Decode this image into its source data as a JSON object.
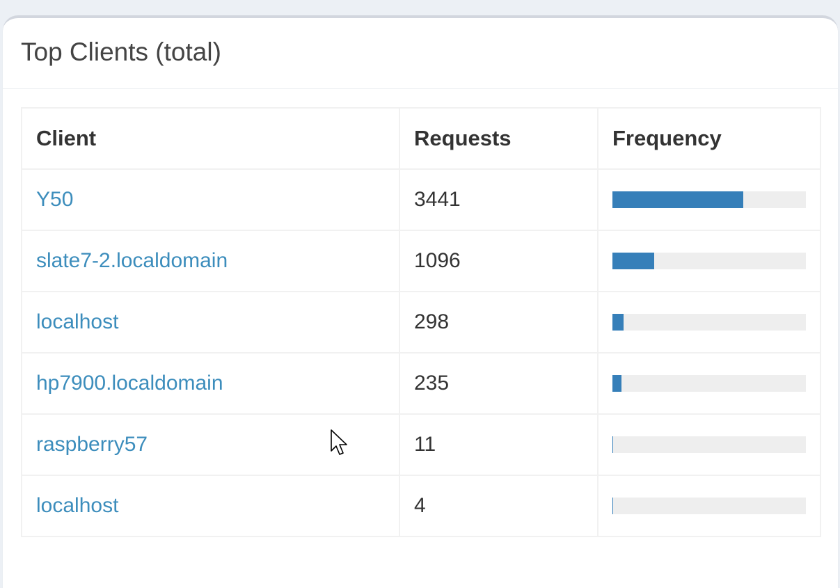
{
  "box": {
    "title": "Top Clients (total)"
  },
  "table": {
    "headers": {
      "client": "Client",
      "requests": "Requests",
      "frequency": "Frequency"
    },
    "rows": [
      {
        "client": "Y50",
        "requests": "3441",
        "frequency_pct": 67.6
      },
      {
        "client": "slate7-2.localdomain",
        "requests": "1096",
        "frequency_pct": 21.5
      },
      {
        "client": "localhost",
        "requests": "298",
        "frequency_pct": 5.9
      },
      {
        "client": "hp7900.localdomain",
        "requests": "235",
        "frequency_pct": 4.6
      },
      {
        "client": "raspberry57",
        "requests": "11",
        "frequency_pct": 0.2
      },
      {
        "client": "localhost",
        "requests": "4",
        "frequency_pct": 0.1
      }
    ]
  },
  "colors": {
    "link": "#3c8dbc",
    "bar": "#367fb9",
    "bar_track": "#eeeeee"
  },
  "icons": {
    "cursor": "mouse-pointer-icon"
  }
}
